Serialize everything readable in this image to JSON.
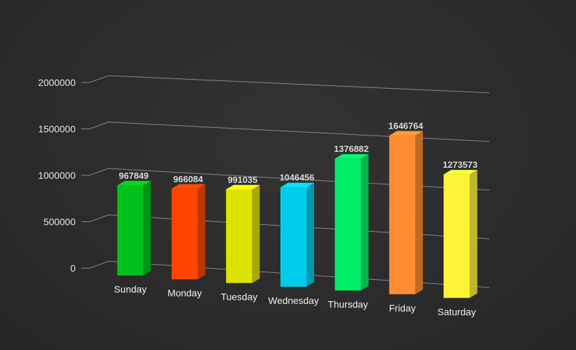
{
  "chart_data": {
    "type": "bar",
    "three_d": true,
    "categories": [
      "Sunday",
      "Monday",
      "Tuesday",
      "Wednesday",
      "Thursday",
      "Friday",
      "Saturday"
    ],
    "values": [
      967849,
      966084,
      991035,
      1046456,
      1376882,
      1646764,
      1273573
    ],
    "data_labels": [
      "967849",
      "966084",
      "991035",
      "1046456",
      "1376882",
      "1646764",
      "1273573"
    ],
    "colors": [
      "#00c21b",
      "#ff4500",
      "#dde300",
      "#00ccea",
      "#00ee65",
      "#ff8c33",
      "#fff437"
    ],
    "y_ticks": [
      0,
      500000,
      1000000,
      1500000,
      2000000
    ],
    "y_tick_labels": [
      "0",
      "500000",
      "1000000",
      "1500000",
      "2000000"
    ],
    "ylim": [
      0,
      2000000
    ],
    "grid": true,
    "legend": "none",
    "title": "",
    "xlabel": "",
    "ylabel": "",
    "background": "#2b2b2b"
  }
}
